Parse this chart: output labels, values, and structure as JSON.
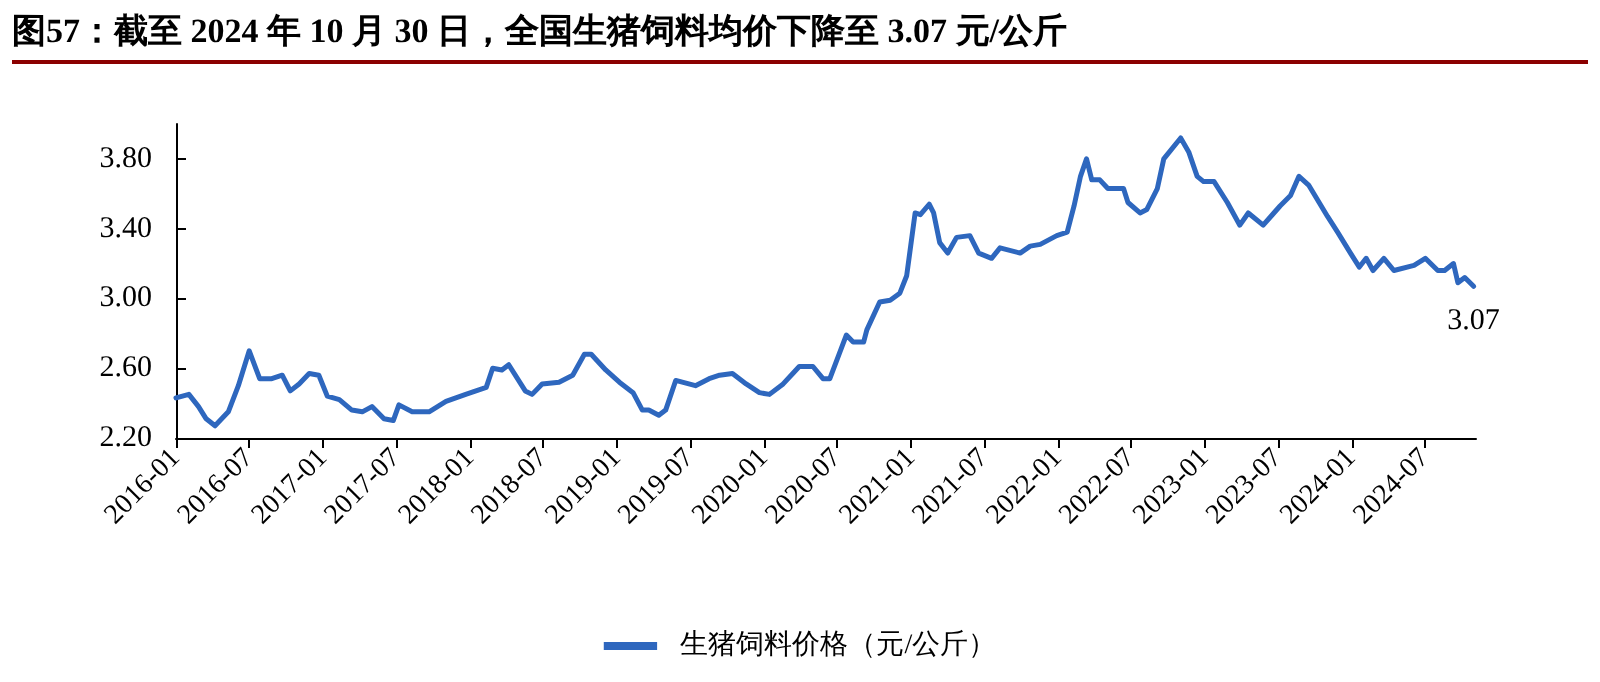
{
  "chart_data": {
    "type": "line",
    "title": "图57：截至 2024 年 10 月 30 日，全国生猪饲料均价下降至 3.07 元/公斤",
    "x": [
      "2016-01-01",
      "2016-02-02",
      "2016-02-26",
      "2016-03-16",
      "2016-04-07",
      "2016-05-10",
      "2016-06-04",
      "2016-07-01",
      "2016-07-27",
      "2016-08-26",
      "2016-09-21",
      "2016-10-11",
      "2016-11-02",
      "2016-11-27",
      "2016-12-21",
      "2017-01-11",
      "2017-02-10",
      "2017-03-13",
      "2017-04-08",
      "2017-05-02",
      "2017-06-01",
      "2017-06-24",
      "2017-07-08",
      "2017-08-10",
      "2017-09-21",
      "2017-11-02",
      "2017-12-21",
      "2018-02-10",
      "2018-02-26",
      "2018-03-21",
      "2018-04-07",
      "2018-05-18",
      "2018-06-04",
      "2018-06-29",
      "2018-08-10",
      "2018-09-13",
      "2018-10-12",
      "2018-10-29",
      "2018-12-04",
      "2019-01-07",
      "2019-02-10",
      "2019-03-05",
      "2019-03-21",
      "2019-04-15",
      "2019-05-02",
      "2019-05-27",
      "2019-07-15",
      "2019-08-18",
      "2019-09-13",
      "2019-10-15",
      "2019-11-18",
      "2019-12-21",
      "2020-01-15",
      "2020-02-18",
      "2020-03-13",
      "2020-03-29",
      "2020-05-02",
      "2020-05-27",
      "2020-06-13",
      "2020-07-24",
      "2020-08-10",
      "2020-09-05",
      "2020-09-13",
      "2020-10-15",
      "2020-11-10",
      "2020-12-04",
      "2020-12-21",
      "2021-01-11",
      "2021-01-24",
      "2021-02-15",
      "2021-02-26",
      "2021-03-13",
      "2021-04-02",
      "2021-04-24",
      "2021-05-27",
      "2021-06-18",
      "2021-07-20",
      "2021-08-10",
      "2021-09-29",
      "2021-10-24",
      "2021-11-18",
      "2021-12-29",
      "2022-01-24",
      "2022-02-10",
      "2022-02-26",
      "2022-03-13",
      "2022-03-26",
      "2022-04-15",
      "2022-05-05",
      "2022-06-13",
      "2022-06-24",
      "2022-07-24",
      "2022-08-10",
      "2022-09-05",
      "2022-09-21",
      "2022-11-02",
      "2022-11-22",
      "2022-12-13",
      "2022-12-29",
      "2023-01-24",
      "2023-02-26",
      "2023-03-29",
      "2023-04-19",
      "2023-05-26",
      "2023-07-07",
      "2023-08-02",
      "2023-08-23",
      "2023-09-16",
      "2023-11-02",
      "2023-11-27",
      "2023-12-29",
      "2024-01-20",
      "2024-02-06",
      "2024-02-23",
      "2024-03-21",
      "2024-04-15",
      "2024-06-04",
      "2024-07-02",
      "2024-08-02",
      "2024-08-19",
      "2024-09-10",
      "2024-09-21",
      "2024-10-08",
      "2024-10-30"
    ],
    "series": [
      {
        "name": "生猪饲料价格（元/公斤）",
        "color": "#2e67be",
        "values": [
          2.43,
          2.45,
          2.38,
          2.31,
          2.27,
          2.35,
          2.5,
          2.7,
          2.54,
          2.54,
          2.56,
          2.47,
          2.51,
          2.57,
          2.56,
          2.44,
          2.42,
          2.36,
          2.35,
          2.38,
          2.31,
          2.3,
          2.39,
          2.35,
          2.35,
          2.41,
          2.45,
          2.49,
          2.6,
          2.59,
          2.62,
          2.47,
          2.45,
          2.51,
          2.52,
          2.56,
          2.68,
          2.68,
          2.59,
          2.52,
          2.46,
          2.36,
          2.36,
          2.33,
          2.36,
          2.53,
          2.5,
          2.54,
          2.56,
          2.57,
          2.51,
          2.46,
          2.45,
          2.51,
          2.57,
          2.61,
          2.61,
          2.54,
          2.54,
          2.79,
          2.75,
          2.75,
          2.82,
          2.98,
          2.99,
          3.03,
          3.13,
          3.49,
          3.48,
          3.54,
          3.49,
          3.32,
          3.26,
          3.35,
          3.36,
          3.26,
          3.23,
          3.29,
          3.26,
          3.3,
          3.31,
          3.36,
          3.38,
          3.53,
          3.7,
          3.8,
          3.68,
          3.68,
          3.63,
          3.63,
          3.55,
          3.49,
          3.51,
          3.63,
          3.8,
          3.92,
          3.84,
          3.7,
          3.67,
          3.67,
          3.55,
          3.42,
          3.49,
          3.42,
          3.53,
          3.59,
          3.7,
          3.65,
          3.47,
          3.38,
          3.26,
          3.18,
          3.23,
          3.16,
          3.23,
          3.16,
          3.19,
          3.23,
          3.16,
          3.16,
          3.2,
          3.09,
          3.12,
          3.07
        ]
      }
    ],
    "annotations": [
      {
        "text": "3.07",
        "x": "2024-10-30",
        "y": 3.07
      }
    ],
    "xlim": [
      "2016-01-01",
      "2024-11-05"
    ],
    "xticks": [
      "2016-01",
      "2016-07",
      "2017-01",
      "2017-07",
      "2018-01",
      "2018-07",
      "2019-01",
      "2019-07",
      "2020-01",
      "2020-07",
      "2021-01",
      "2021-07",
      "2022-01",
      "2022-07",
      "2023-01",
      "2023-07",
      "2024-01",
      "2024-07"
    ],
    "ylim": [
      2.2,
      4.0
    ],
    "yticks": [
      {
        "value": 2.2,
        "label": "2.20"
      },
      {
        "value": 2.6,
        "label": "2.60"
      },
      {
        "value": 3.0,
        "label": "3.00"
      },
      {
        "value": 3.4,
        "label": "3.40"
      },
      {
        "value": 3.8,
        "label": "3.80"
      }
    ],
    "grid": false,
    "legend": "bottom",
    "marker": "none",
    "line_style": "solid"
  }
}
